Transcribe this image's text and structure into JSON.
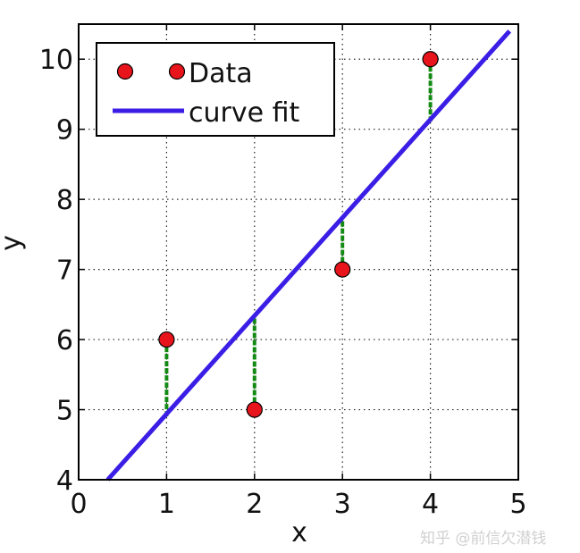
{
  "chart_data": {
    "type": "scatter",
    "xlabel": "x",
    "ylabel": "y",
    "xlim": [
      0,
      5
    ],
    "ylim": [
      4,
      10.5
    ],
    "x_ticks": [
      0,
      1,
      2,
      3,
      4,
      5
    ],
    "y_ticks": [
      4,
      5,
      6,
      7,
      8,
      9,
      10
    ],
    "grid": true,
    "grid_style": "dotted",
    "legend_position": "top-left",
    "series": [
      {
        "name": "Data",
        "type": "scatter",
        "color": "#e8141c",
        "x": [
          1,
          2,
          3,
          4
        ],
        "y": [
          6,
          5,
          7,
          10
        ]
      },
      {
        "name": "curve fit",
        "type": "line",
        "color": "#3b1ee6",
        "x": [
          0.33,
          4.9
        ],
        "y": [
          4.0,
          10.4
        ]
      }
    ],
    "residuals": {
      "color": "#138a13",
      "x": [
        1,
        2,
        3,
        4
      ],
      "from_y": [
        6,
        5,
        7,
        10
      ],
      "to_y": [
        4.9,
        6.3,
        7.7,
        9.1
      ]
    }
  },
  "watermark": "知乎 @前信欠潜钱"
}
